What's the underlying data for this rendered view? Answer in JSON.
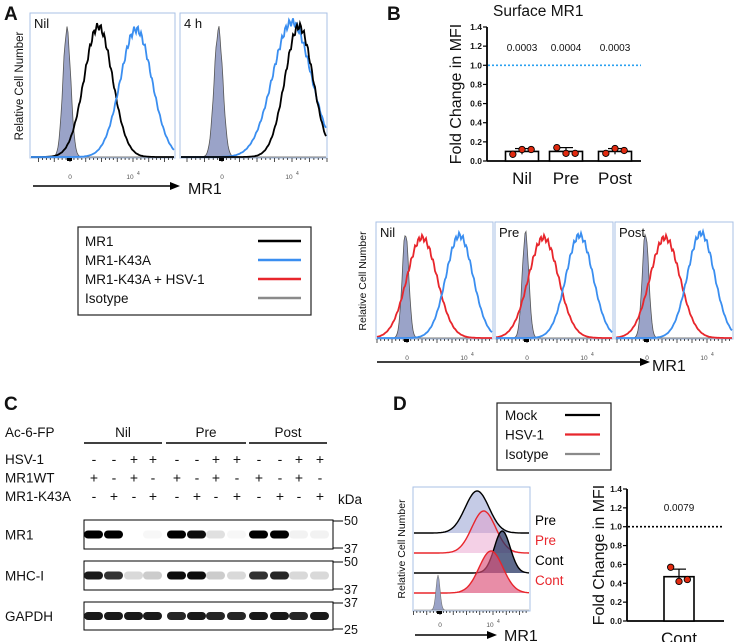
{
  "panel_labels": {
    "a": "A",
    "b": "B",
    "c": "C",
    "d": "D"
  },
  "colors": {
    "mr1": "#000000",
    "k43a": "#3a8ef0",
    "hsv": "#e8262c",
    "isotype": "#8a8a8a",
    "isotype_fill": "#9aa3c8",
    "frame": "#a9c1e6",
    "point": "#e02a10",
    "dotted_b": "#2aa0f0"
  },
  "common": {
    "ylabel_hist": "Relative Cell Number",
    "xlabel_hist": "MR1",
    "tick_zero": "0",
    "tick_1e4_base": "10",
    "tick_1e4_exp": "4"
  },
  "panel_a": {
    "panels": [
      {
        "title": "Nil",
        "curves": [
          {
            "series": "Isotype",
            "center": -0.2,
            "sd": 0.25,
            "height": 0.9
          },
          {
            "series": "MR1",
            "center": 1.8,
            "sd": 0.9,
            "height": 0.92
          },
          {
            "series": "MR1-K43A",
            "center": 4.2,
            "sd": 1.0,
            "height": 0.9
          }
        ]
      },
      {
        "title": "4 h",
        "curves": [
          {
            "series": "Isotype",
            "center": -0.2,
            "sd": 0.25,
            "height": 0.9
          },
          {
            "series": "MR1-K43A",
            "center": 4.0,
            "sd": 1.1,
            "height": 0.95
          },
          {
            "series": "MR1",
            "center": 4.4,
            "sd": 0.8,
            "height": 0.92
          }
        ]
      }
    ]
  },
  "legend_a": {
    "items": [
      {
        "label": "MR1",
        "series": "MR1"
      },
      {
        "label": "MR1-K43A",
        "series": "MR1-K43A"
      },
      {
        "label": "MR1-K43A + HSV-1",
        "series": "MR1-K43A + HSV-1"
      },
      {
        "label": "Isotype",
        "series": "Isotype"
      }
    ]
  },
  "chart_data": [
    {
      "id": "B-bar",
      "type": "bar",
      "title": "Surface MR1",
      "ylabel": "Fold Change in MFI",
      "xlabel": "",
      "ylim": [
        0,
        1.4
      ],
      "yticks": [
        "0.0",
        "0.2",
        "0.4",
        "0.6",
        "0.8",
        "1.0",
        "1.2",
        "1.4"
      ],
      "categories": [
        "Nil",
        "Pre",
        "Post"
      ],
      "values": [
        0.1,
        0.1,
        0.1
      ],
      "points": [
        [
          0.07,
          0.12,
          0.12
        ],
        [
          0.14,
          0.08,
          0.08
        ],
        [
          0.08,
          0.13,
          0.11
        ]
      ],
      "error": [
        0.03,
        0.04,
        0.03
      ],
      "p_values": [
        "0.0003",
        "0.0004",
        "0.0003"
      ],
      "reference_line": 1.0
    },
    {
      "id": "D-bar",
      "type": "bar",
      "title": "",
      "ylabel": "Fold Change in MFI",
      "xlabel": "",
      "ylim": [
        0,
        1.4
      ],
      "yticks": [
        "0.0",
        "0.2",
        "0.4",
        "0.6",
        "0.8",
        "1.0",
        "1.2",
        "1.4"
      ],
      "categories": [
        "Cont"
      ],
      "values": [
        0.47
      ],
      "points": [
        [
          0.57,
          0.42,
          0.44
        ]
      ],
      "error": [
        0.08
      ],
      "p_values": [
        "0.0079"
      ],
      "reference_line": 1.0
    }
  ],
  "panel_b_hist": {
    "panels": [
      {
        "title": "Nil",
        "curves": [
          {
            "series": "Isotype",
            "center": -0.1,
            "sd": 0.22,
            "height": 0.92
          },
          {
            "series": "MR1-K43A + HSV-1",
            "center": 1.0,
            "sd": 1.0,
            "height": 0.88
          },
          {
            "series": "MR1-K43A",
            "center": 3.5,
            "sd": 0.9,
            "height": 0.9
          }
        ]
      },
      {
        "title": "Pre",
        "curves": [
          {
            "series": "Isotype",
            "center": -0.1,
            "sd": 0.22,
            "height": 0.92
          },
          {
            "series": "MR1-K43A + HSV-1",
            "center": 1.1,
            "sd": 1.0,
            "height": 0.88
          },
          {
            "series": "MR1-K43A",
            "center": 3.5,
            "sd": 0.9,
            "height": 0.9
          }
        ]
      },
      {
        "title": "Post",
        "curves": [
          {
            "series": "Isotype",
            "center": -0.1,
            "sd": 0.22,
            "height": 0.92
          },
          {
            "series": "MR1-K43A + HSV-1",
            "center": 1.2,
            "sd": 1.0,
            "height": 0.88
          },
          {
            "series": "MR1-K43A",
            "center": 3.6,
            "sd": 0.9,
            "height": 0.92
          }
        ]
      }
    ]
  },
  "panel_c": {
    "treatment_label": "Ac-6-FP",
    "groups": [
      "Nil",
      "Pre",
      "Post"
    ],
    "rows": [
      {
        "label": "HSV-1",
        "signs": [
          "-",
          "-",
          "+",
          "+",
          "-",
          "-",
          "+",
          "+",
          "-",
          "-",
          "+",
          "+"
        ]
      },
      {
        "label": "MR1WT",
        "signs": [
          "+",
          "-",
          "+",
          "-",
          "+",
          "-",
          "+",
          "-",
          "+",
          "-",
          "+",
          "-"
        ]
      },
      {
        "label": "MR1-K43A",
        "signs": [
          "-",
          "+",
          "-",
          "+",
          "-",
          "+",
          "-",
          "+",
          "-",
          "+",
          "-",
          "+"
        ]
      }
    ],
    "kda_label": "kDa",
    "blots": [
      {
        "label": "MR1",
        "markers": [
          "50",
          "37"
        ],
        "intensity": [
          1,
          1,
          0,
          0.03,
          1,
          0.95,
          0.12,
          0.03,
          1,
          1,
          0.05,
          0.05
        ]
      },
      {
        "label": "MHC-I",
        "markers": [
          "50",
          "37"
        ],
        "intensity": [
          0.9,
          0.8,
          0.15,
          0.2,
          0.95,
          0.95,
          0.2,
          0.15,
          0.8,
          0.85,
          0.15,
          0.15
        ]
      },
      {
        "label": "GAPDH",
        "markers": [
          "37",
          "25"
        ],
        "intensity": [
          0.9,
          0.9,
          0.9,
          0.9,
          0.85,
          0.9,
          0.85,
          0.85,
          0.9,
          0.9,
          0.85,
          0.9
        ]
      }
    ]
  },
  "panel_d": {
    "legend": [
      {
        "label": "Mock",
        "series": "Mock"
      },
      {
        "label": "HSV-1",
        "series": "HSV-1"
      },
      {
        "label": "Isotype",
        "series": "Isotype"
      }
    ],
    "offset_histograms": [
      {
        "label": "Pre",
        "series": "Mock",
        "center": 2.8,
        "sd": 0.9,
        "height": 1.0
      },
      {
        "label": "Pre",
        "series": "HSV-1",
        "center": 3.3,
        "sd": 0.9,
        "height": 1.0
      },
      {
        "label": "Cont",
        "series": "Mock",
        "center": 4.7,
        "sd": 0.6,
        "height": 1.0
      },
      {
        "label": "Cont",
        "series": "HSV-1",
        "center": 3.85,
        "sd": 0.9,
        "height": 1.0
      }
    ],
    "isotype": {
      "center": -0.15,
      "sd": 0.15
    }
  }
}
